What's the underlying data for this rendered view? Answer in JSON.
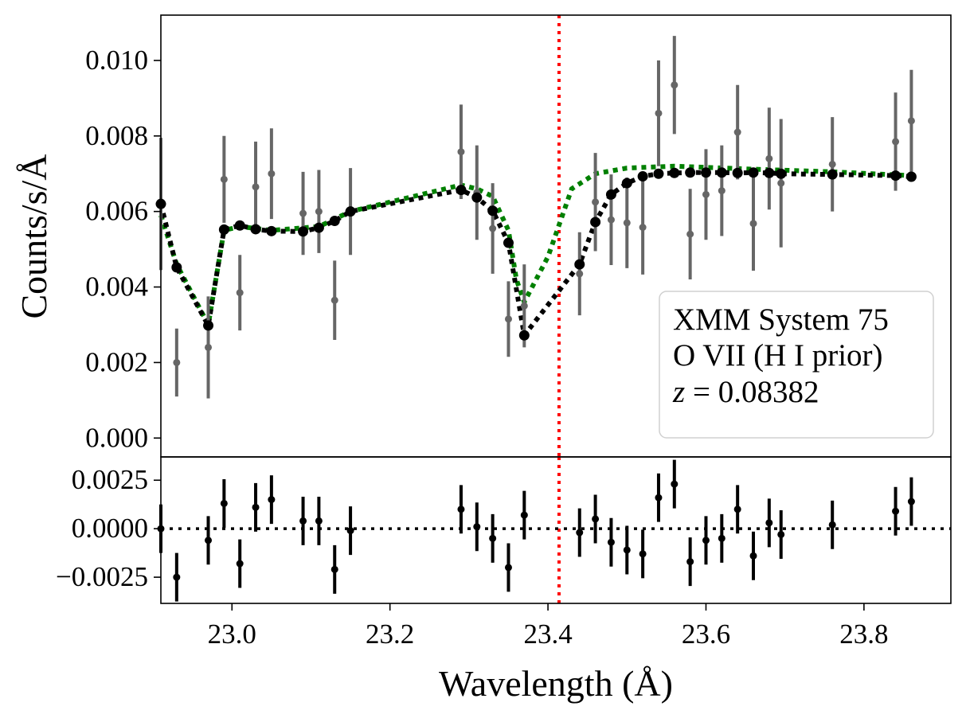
{
  "chart_data": [
    {
      "panel": "main",
      "type": "scatter",
      "ylabel": "Counts/s/Å",
      "xlim": [
        22.91,
        23.91
      ],
      "ylim": [
        -0.0005,
        0.0112
      ],
      "yticks": [
        0.0,
        0.002,
        0.004,
        0.006,
        0.008,
        0.01
      ],
      "ytick_labels": [
        "0.000",
        "0.002",
        "0.004",
        "0.006",
        "0.008",
        "0.010"
      ],
      "legend": {
        "location": "lower-right",
        "lines": [
          "XMM System 75",
          "O VII (H I prior)",
          "z = 0.08382"
        ],
        "z_symbol": "z",
        "z_value": "0.08382"
      },
      "reference_line": {
        "x": 23.414,
        "color": "#ff0000",
        "style": "dotted"
      },
      "colors": {
        "data": "#666666",
        "model": "#000000",
        "model_continuum": "#008000"
      },
      "observed": {
        "x": [
          22.91,
          22.93,
          22.97,
          22.99,
          23.01,
          23.03,
          23.05,
          23.09,
          23.11,
          23.13,
          23.15,
          23.29,
          23.31,
          23.33,
          23.35,
          23.37,
          23.44,
          23.46,
          23.48,
          23.5,
          23.52,
          23.54,
          23.56,
          23.58,
          23.6,
          23.62,
          23.64,
          23.66,
          23.68,
          23.695,
          23.76,
          23.84,
          23.86
        ],
        "y": [
          0.0062,
          0.002,
          0.0024,
          0.00685,
          0.00385,
          0.00665,
          0.007,
          0.00595,
          0.006,
          0.00365,
          0.006,
          0.00758,
          0.0065,
          0.00555,
          0.00315,
          0.0035,
          0.00435,
          0.00625,
          0.00578,
          0.0057,
          0.00558,
          0.0086,
          0.00935,
          0.0054,
          0.00645,
          0.00655,
          0.0081,
          0.00568,
          0.0074,
          0.00675,
          0.00725,
          0.00785,
          0.0084
        ],
        "yerr": [
          0.00175,
          0.0009,
          0.00135,
          0.00115,
          0.001,
          0.0012,
          0.0012,
          0.0011,
          0.0011,
          0.00105,
          0.00115,
          0.00125,
          0.00125,
          0.0012,
          0.001,
          0.0011,
          0.0011,
          0.0013,
          0.0012,
          0.0012,
          0.00125,
          0.0014,
          0.0013,
          0.0012,
          0.0012,
          0.0012,
          0.00125,
          0.00125,
          0.00135,
          0.0017,
          0.00125,
          0.0013,
          0.00135
        ]
      },
      "model": {
        "x": [
          22.91,
          22.93,
          22.97,
          22.99,
          23.01,
          23.03,
          23.05,
          23.09,
          23.11,
          23.13,
          23.15,
          23.29,
          23.31,
          23.33,
          23.35,
          23.37,
          23.44,
          23.46,
          23.48,
          23.5,
          23.52,
          23.54,
          23.56,
          23.58,
          23.6,
          23.62,
          23.64,
          23.66,
          23.68,
          23.695,
          23.76,
          23.84,
          23.86
        ],
        "y": [
          0.0062,
          0.00452,
          0.00298,
          0.00552,
          0.00563,
          0.00553,
          0.00548,
          0.00547,
          0.00557,
          0.00575,
          0.006,
          0.00657,
          0.00637,
          0.00602,
          0.00517,
          0.00272,
          0.0046,
          0.00572,
          0.00645,
          0.00675,
          0.00693,
          0.007,
          0.00702,
          0.00703,
          0.00703,
          0.00703,
          0.00702,
          0.00703,
          0.00702,
          0.007,
          0.00698,
          0.00695,
          0.00692
        ]
      },
      "model_continuum": {
        "x": [
          22.91,
          22.93,
          22.97,
          22.99,
          23.01,
          23.05,
          23.11,
          23.15,
          23.29,
          23.31,
          23.33,
          23.35,
          23.36,
          23.37,
          23.4,
          23.43,
          23.46,
          23.5,
          23.56,
          23.66,
          23.76,
          23.86
        ],
        "y": [
          0.0059,
          0.0046,
          0.003,
          0.0055,
          0.0056,
          0.0055,
          0.0056,
          0.006,
          0.0067,
          0.0066,
          0.0064,
          0.0055,
          0.0042,
          0.0036,
          0.0048,
          0.0066,
          0.007,
          0.00715,
          0.0072,
          0.00712,
          0.00705,
          0.00695
        ]
      }
    },
    {
      "panel": "residuals",
      "type": "scatter",
      "xlabel": "Wavelength (Å)",
      "xlim": [
        22.91,
        23.91
      ],
      "ylim": [
        -0.00385,
        0.0037
      ],
      "xticks": [
        23.0,
        23.2,
        23.4,
        23.6,
        23.8
      ],
      "xtick_labels": [
        "23.0",
        "23.2",
        "23.4",
        "23.6",
        "23.8"
      ],
      "yticks": [
        -0.0025,
        0.0,
        0.0025
      ],
      "ytick_labels": [
        "−0.0025",
        "0.0000",
        "0.0025"
      ],
      "zero_line": {
        "y": 0.0,
        "style": "dotted",
        "color": "#000000"
      },
      "color": "#000000",
      "residuals": {
        "x": [
          22.91,
          22.93,
          22.97,
          22.99,
          23.01,
          23.03,
          23.05,
          23.09,
          23.11,
          23.13,
          23.15,
          23.29,
          23.31,
          23.33,
          23.35,
          23.37,
          23.44,
          23.46,
          23.48,
          23.5,
          23.52,
          23.54,
          23.56,
          23.58,
          23.6,
          23.62,
          23.64,
          23.66,
          23.68,
          23.695,
          23.76,
          23.84,
          23.86
        ],
        "y": [
          0.0,
          -0.0025,
          -0.0006,
          0.0013,
          -0.0018,
          0.0011,
          0.0015,
          0.0004,
          0.0004,
          -0.0021,
          -0.0001,
          0.001,
          0.0001,
          -0.0005,
          -0.002,
          0.0007,
          -0.0002,
          0.0005,
          -0.0007,
          -0.0011,
          -0.0013,
          0.0016,
          0.0023,
          -0.0017,
          -0.0006,
          -0.0005,
          0.001,
          -0.0014,
          0.0003,
          -0.0003,
          0.0002,
          0.0009,
          0.0014
        ]
      },
      "yerr": 0.00125
    }
  ]
}
